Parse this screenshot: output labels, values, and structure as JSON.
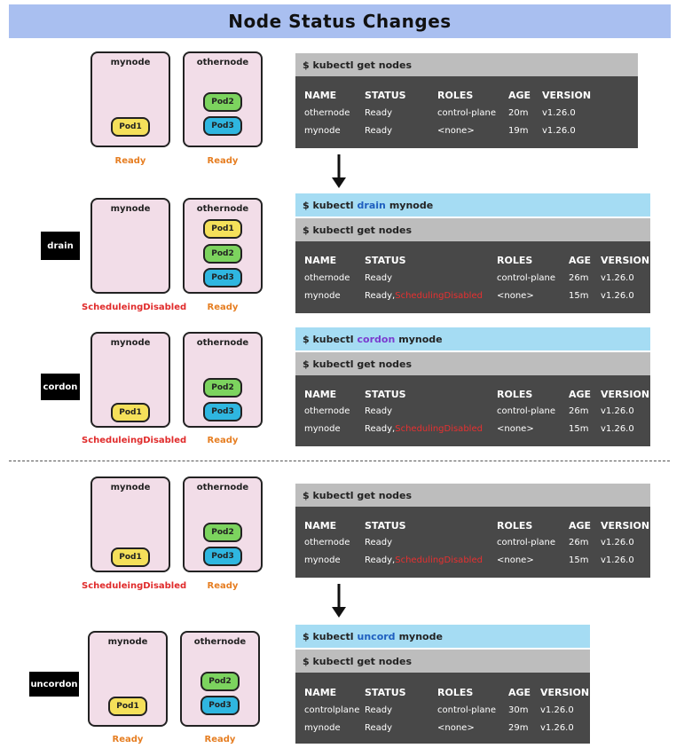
{
  "title": "Node Status Changes",
  "labels": {
    "mynode": "mynode",
    "othernode": "othernode",
    "pod1": "Pod1",
    "pod2": "Pod2",
    "pod3": "Pod3",
    "ready": "Ready",
    "disabled": "ScheduleingDisabled"
  },
  "actions": {
    "drain": "drain",
    "cordon": "cordon",
    "uncordon": "uncordon"
  },
  "commands": {
    "get_nodes": "$ kubectl get nodes",
    "prefix": "$ kubectl",
    "drain_kw": "drain",
    "cordon_kw": "cordon",
    "uncord_kw": "uncord",
    "target": "mynode"
  },
  "table_headers": [
    "NAME",
    "STATUS",
    "ROLES",
    "AGE",
    "VERSION"
  ],
  "tables": [
    {
      "rows": [
        {
          "name": "othernode",
          "status": "Ready",
          "status_extra": "",
          "roles": "control-plane",
          "age": "20m",
          "version": "v1.26.0"
        },
        {
          "name": "mynode",
          "status": "Ready",
          "status_extra": "",
          "roles": "<none>",
          "age": "19m",
          "version": "v1.26.0"
        }
      ]
    },
    {
      "rows": [
        {
          "name": "othernode",
          "status": "Ready",
          "status_extra": "",
          "roles": "control-plane",
          "age": "26m",
          "version": "v1.26.0"
        },
        {
          "name": "mynode",
          "status": "Ready,",
          "status_extra": "SchedulingDisabled",
          "roles": "<none>",
          "age": "15m",
          "version": "v1.26.0"
        }
      ]
    },
    {
      "rows": [
        {
          "name": "othernode",
          "status": "Ready",
          "status_extra": "",
          "roles": "control-plane",
          "age": "26m",
          "version": "v1.26.0"
        },
        {
          "name": "mynode",
          "status": "Ready,",
          "status_extra": "SchedulingDisabled",
          "roles": "<none>",
          "age": "15m",
          "version": "v1.26.0"
        }
      ]
    },
    {
      "rows": [
        {
          "name": "othernode",
          "status": "Ready",
          "status_extra": "",
          "roles": "control-plane",
          "age": "26m",
          "version": "v1.26.0"
        },
        {
          "name": "mynode",
          "status": "Ready,",
          "status_extra": "SchedulingDisabled",
          "roles": "<none>",
          "age": "15m",
          "version": "v1.26.0"
        }
      ]
    },
    {
      "rows": [
        {
          "name": "controlplane",
          "status": "Ready",
          "status_extra": "",
          "roles": "control-plane",
          "age": "30m",
          "version": "v1.26.0"
        },
        {
          "name": "mynode",
          "status": "Ready",
          "status_extra": "",
          "roles": "<none>",
          "age": "29m",
          "version": "v1.26.0"
        }
      ]
    }
  ],
  "colors": {
    "title_bg": "#a9bff0",
    "node_bg": "#f2dde8",
    "pod_yellow": "#f5e05a",
    "pod_green": "#7cd35e",
    "pod_blue": "#2fb6e0",
    "ready": "#e67e22",
    "disabled": "#e02b2b",
    "terminal": "#484848",
    "cmd_gray": "#bdbdbd",
    "cmd_blue": "#a5dcf3"
  }
}
